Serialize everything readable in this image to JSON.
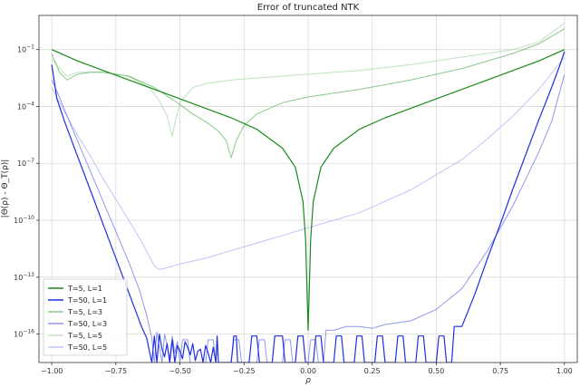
{
  "chart_data": {
    "type": "line",
    "title": "Error of truncated NTK",
    "xlabel": "ρ",
    "ylabel": "|Θ(ρ) - Θ_T(ρ)|",
    "xlim": [
      -1.05,
      1.05
    ],
    "ylim": [
      -17.5,
      0.8
    ],
    "yscale": "log",
    "grid": true,
    "legend_position": "lower-left",
    "x_ticks": [
      -1.0,
      -0.75,
      -0.5,
      -0.25,
      0.0,
      0.25,
      0.5,
      0.75,
      1.0
    ],
    "x_tick_labels": [
      "−1.00",
      "−0.75",
      "−0.50",
      "−0.25",
      "0.00",
      "0.25",
      "0.50",
      "0.75",
      "1.00"
    ],
    "y_ticks": [
      -1,
      -4,
      -7,
      -10,
      -13,
      -16
    ],
    "y_tick_labels": [
      {
        "base": "10",
        "exp": "−1"
      },
      {
        "base": "10",
        "exp": "−4"
      },
      {
        "base": "10",
        "exp": "−7"
      },
      {
        "base": "10",
        "exp": "−10"
      },
      {
        "base": "10",
        "exp": "−13"
      },
      {
        "base": "10",
        "exp": "−16"
      }
    ],
    "series": [
      {
        "name": "T=5, L=1",
        "color": "#1a8a1a",
        "opacity": 1.0,
        "width": 1.2,
        "points": [
          [
            -1.0,
            -1.0
          ],
          [
            -0.9,
            -1.6
          ],
          [
            -0.8,
            -2.1
          ],
          [
            -0.7,
            -2.6
          ],
          [
            -0.6,
            -3.1
          ],
          [
            -0.5,
            -3.6
          ],
          [
            -0.4,
            -4.1
          ],
          [
            -0.3,
            -4.6
          ],
          [
            -0.2,
            -5.2
          ],
          [
            -0.1,
            -6.2
          ],
          [
            -0.05,
            -7.2
          ],
          [
            -0.02,
            -9.0
          ],
          [
            -0.01,
            -11.0
          ],
          [
            0.0,
            -15.8
          ],
          [
            0.01,
            -11.0
          ],
          [
            0.02,
            -9.0
          ],
          [
            0.05,
            -7.2
          ],
          [
            0.1,
            -6.2
          ],
          [
            0.2,
            -5.2
          ],
          [
            0.3,
            -4.6
          ],
          [
            0.4,
            -4.1
          ],
          [
            0.5,
            -3.6
          ],
          [
            0.6,
            -3.1
          ],
          [
            0.7,
            -2.6
          ],
          [
            0.8,
            -2.1
          ],
          [
            0.9,
            -1.6
          ],
          [
            1.0,
            -1.0
          ]
        ]
      },
      {
        "name": "T=50, L=1",
        "color": "#1f2ee6",
        "opacity": 1.0,
        "width": 1.2,
        "points": [
          [
            -1.0,
            -1.8
          ],
          [
            -0.98,
            -3.6
          ],
          [
            -0.95,
            -4.8
          ],
          [
            -0.9,
            -6.6
          ],
          [
            -0.85,
            -8.4
          ],
          [
            -0.8,
            -10.2
          ],
          [
            -0.75,
            -12.0
          ],
          [
            -0.7,
            -13.8
          ],
          [
            -0.65,
            -15.6
          ],
          [
            -0.63,
            -16.2
          ],
          [
            -0.61,
            -17.5
          ],
          [
            -0.6,
            -16.1
          ],
          [
            -0.59,
            -17.5
          ],
          [
            -0.58,
            -16.0
          ],
          [
            -0.57,
            -16.8
          ],
          [
            -0.56,
            -17.2
          ],
          [
            -0.55,
            -16.5
          ],
          [
            -0.54,
            -17.5
          ],
          [
            -0.53,
            -16.3
          ],
          [
            -0.52,
            -17.5
          ],
          [
            -0.51,
            -16.6
          ],
          [
            -0.5,
            -16.9
          ],
          [
            -0.49,
            -17.3
          ],
          [
            -0.48,
            -16.4
          ],
          [
            -0.47,
            -16.7
          ],
          [
            -0.46,
            -17.1
          ],
          [
            -0.45,
            -16.5
          ],
          [
            -0.44,
            -17.4
          ],
          [
            -0.43,
            -16.9
          ],
          [
            -0.42,
            -16.8
          ],
          [
            -0.41,
            -17.5
          ],
          [
            -0.4,
            -16.6
          ],
          [
            -0.39,
            -17.0
          ],
          [
            -0.38,
            -17.5
          ],
          [
            -0.37,
            -16.7
          ],
          [
            -0.36,
            -17.5
          ],
          [
            -0.355,
            -16.1
          ],
          [
            -0.35,
            -17.5
          ],
          [
            -0.3,
            -17.5
          ],
          [
            -0.29,
            -16.1
          ],
          [
            -0.28,
            -16.1
          ],
          [
            -0.275,
            -17.5
          ],
          [
            -0.23,
            -17.5
          ],
          [
            -0.22,
            -16.1
          ],
          [
            -0.2,
            -16.1
          ],
          [
            -0.19,
            -17.5
          ],
          [
            -0.14,
            -17.5
          ],
          [
            -0.13,
            -16.1
          ],
          [
            -0.1,
            -16.1
          ],
          [
            -0.09,
            -17.5
          ],
          [
            -0.05,
            -17.5
          ],
          [
            -0.04,
            -16.1
          ],
          [
            -0.02,
            -16.1
          ],
          [
            -0.01,
            -17.5
          ],
          [
            0.02,
            -17.5
          ],
          [
            0.03,
            -16.1
          ],
          [
            0.05,
            -16.1
          ],
          [
            0.06,
            -17.5
          ],
          [
            0.1,
            -17.5
          ],
          [
            0.11,
            -16.1
          ],
          [
            0.13,
            -16.1
          ],
          [
            0.14,
            -17.5
          ],
          [
            0.18,
            -17.5
          ],
          [
            0.19,
            -16.1
          ],
          [
            0.21,
            -16.1
          ],
          [
            0.22,
            -17.5
          ],
          [
            0.26,
            -17.5
          ],
          [
            0.27,
            -16.1
          ],
          [
            0.29,
            -16.1
          ],
          [
            0.3,
            -17.5
          ],
          [
            0.34,
            -17.5
          ],
          [
            0.35,
            -16.1
          ],
          [
            0.37,
            -16.1
          ],
          [
            0.38,
            -17.5
          ],
          [
            0.42,
            -17.5
          ],
          [
            0.43,
            -16.1
          ],
          [
            0.45,
            -16.1
          ],
          [
            0.46,
            -17.5
          ],
          [
            0.5,
            -17.5
          ],
          [
            0.51,
            -16.1
          ],
          [
            0.53,
            -16.1
          ],
          [
            0.54,
            -17.5
          ],
          [
            0.56,
            -17.5
          ],
          [
            0.57,
            -15.6
          ],
          [
            0.6,
            -15.6
          ],
          [
            0.65,
            -13.9
          ],
          [
            0.7,
            -12.0
          ],
          [
            0.75,
            -10.2
          ],
          [
            0.8,
            -8.3
          ],
          [
            0.85,
            -6.5
          ],
          [
            0.9,
            -4.7
          ],
          [
            0.95,
            -3.0
          ],
          [
            0.98,
            -1.9
          ],
          [
            1.0,
            -1.1
          ]
        ]
      },
      {
        "name": "T=5, L=3",
        "color": "#4ea94e",
        "opacity": 0.65,
        "width": 1.0,
        "points": [
          [
            -1.0,
            -1.2
          ],
          [
            -0.97,
            -2.2
          ],
          [
            -0.94,
            -2.6
          ],
          [
            -0.9,
            -2.3
          ],
          [
            -0.85,
            -2.2
          ],
          [
            -0.8,
            -2.2
          ],
          [
            -0.7,
            -2.4
          ],
          [
            -0.6,
            -3.0
          ],
          [
            -0.5,
            -3.9
          ],
          [
            -0.45,
            -4.4
          ],
          [
            -0.4,
            -4.8
          ],
          [
            -0.35,
            -5.3
          ],
          [
            -0.32,
            -5.8
          ],
          [
            -0.3,
            -6.7
          ],
          [
            -0.28,
            -5.8
          ],
          [
            -0.25,
            -5.0
          ],
          [
            -0.2,
            -4.4
          ],
          [
            -0.1,
            -3.8
          ],
          [
            0.0,
            -3.5
          ],
          [
            0.2,
            -3.1
          ],
          [
            0.4,
            -2.6
          ],
          [
            0.6,
            -2.0
          ],
          [
            0.8,
            -1.2
          ],
          [
            0.9,
            -0.7
          ],
          [
            1.0,
            0.1
          ]
        ]
      },
      {
        "name": "T=50, L=3",
        "color": "#7b86e8",
        "opacity": 0.85,
        "width": 1.0,
        "points": [
          [
            -1.0,
            -2.6
          ],
          [
            -0.98,
            -3.2
          ],
          [
            -0.95,
            -4.2
          ],
          [
            -0.9,
            -5.8
          ],
          [
            -0.85,
            -7.4
          ],
          [
            -0.8,
            -9.0
          ],
          [
            -0.75,
            -10.6
          ],
          [
            -0.7,
            -12.2
          ],
          [
            -0.66,
            -13.6
          ],
          [
            -0.63,
            -15.0
          ],
          [
            -0.61,
            -16.2
          ],
          [
            -0.6,
            -17.5
          ],
          [
            -0.59,
            -15.9
          ],
          [
            -0.57,
            -17.5
          ],
          [
            -0.56,
            -16.0
          ],
          [
            -0.55,
            -16.6
          ],
          [
            -0.54,
            -17.3
          ],
          [
            -0.53,
            -16.1
          ],
          [
            -0.52,
            -17.0
          ],
          [
            -0.51,
            -16.4
          ],
          [
            -0.5,
            -17.5
          ],
          [
            -0.49,
            -16.3
          ],
          [
            -0.47,
            -16.3
          ],
          [
            -0.46,
            -17.5
          ],
          [
            -0.4,
            -17.5
          ],
          [
            -0.39,
            -16.3
          ],
          [
            -0.37,
            -16.3
          ],
          [
            -0.36,
            -17.5
          ],
          [
            -0.3,
            -17.5
          ],
          [
            -0.29,
            -16.3
          ],
          [
            -0.27,
            -16.3
          ],
          [
            -0.26,
            -17.5
          ],
          [
            -0.2,
            -17.5
          ],
          [
            -0.19,
            -16.3
          ],
          [
            -0.17,
            -16.3
          ],
          [
            -0.16,
            -17.5
          ],
          [
            -0.1,
            -17.5
          ],
          [
            -0.09,
            -16.3
          ],
          [
            -0.07,
            -16.3
          ],
          [
            -0.06,
            -17.5
          ],
          [
            0.0,
            -17.5
          ],
          [
            0.01,
            -16.3
          ],
          [
            0.03,
            -16.3
          ],
          [
            0.04,
            -17.5
          ],
          [
            0.06,
            -17.5
          ],
          [
            0.07,
            -15.8
          ],
          [
            0.1,
            -15.8
          ],
          [
            0.15,
            -15.6
          ],
          [
            0.2,
            -15.6
          ],
          [
            0.25,
            -15.7
          ],
          [
            0.3,
            -15.5
          ],
          [
            0.35,
            -15.4
          ],
          [
            0.4,
            -15.3
          ],
          [
            0.45,
            -15.0
          ],
          [
            0.5,
            -14.7
          ],
          [
            0.6,
            -13.6
          ],
          [
            0.7,
            -11.6
          ],
          [
            0.8,
            -9.2
          ],
          [
            0.9,
            -6.4
          ],
          [
            0.95,
            -4.8
          ],
          [
            1.0,
            -2.3
          ]
        ]
      },
      {
        "name": "T=5, L=5",
        "color": "#9cd39c",
        "opacity": 0.65,
        "width": 1.0,
        "points": [
          [
            -1.0,
            -1.5
          ],
          [
            -0.97,
            -2.0
          ],
          [
            -0.94,
            -2.4
          ],
          [
            -0.9,
            -2.2
          ],
          [
            -0.8,
            -2.2
          ],
          [
            -0.7,
            -2.4
          ],
          [
            -0.62,
            -3.0
          ],
          [
            -0.58,
            -3.7
          ],
          [
            -0.55,
            -4.5
          ],
          [
            -0.53,
            -5.6
          ],
          [
            -0.52,
            -4.9
          ],
          [
            -0.5,
            -3.8
          ],
          [
            -0.45,
            -3.0
          ],
          [
            -0.4,
            -2.8
          ],
          [
            -0.3,
            -2.6
          ],
          [
            -0.2,
            -2.5
          ],
          [
            0.0,
            -2.3
          ],
          [
            0.2,
            -2.1
          ],
          [
            0.4,
            -1.8
          ],
          [
            0.6,
            -1.4
          ],
          [
            0.8,
            -1.0
          ],
          [
            0.9,
            -0.6
          ],
          [
            1.0,
            0.4
          ]
        ]
      },
      {
        "name": "T=50, L=5",
        "color": "#b7bff5",
        "opacity": 0.9,
        "width": 1.0,
        "points": [
          [
            -1.0,
            -3.0
          ],
          [
            -0.95,
            -4.3
          ],
          [
            -0.9,
            -5.5
          ],
          [
            -0.85,
            -6.6
          ],
          [
            -0.8,
            -7.8
          ],
          [
            -0.75,
            -8.9
          ],
          [
            -0.7,
            -10.0
          ],
          [
            -0.65,
            -11.1
          ],
          [
            -0.62,
            -11.9
          ],
          [
            -0.6,
            -12.4
          ],
          [
            -0.58,
            -12.6
          ],
          [
            -0.55,
            -12.5
          ],
          [
            -0.5,
            -12.3
          ],
          [
            -0.4,
            -12.0
          ],
          [
            -0.3,
            -11.6
          ],
          [
            -0.2,
            -11.2
          ],
          [
            -0.1,
            -10.8
          ],
          [
            0.0,
            -10.4
          ],
          [
            0.1,
            -10.0
          ],
          [
            0.2,
            -9.6
          ],
          [
            0.3,
            -9.0
          ],
          [
            0.4,
            -8.4
          ],
          [
            0.5,
            -7.6
          ],
          [
            0.6,
            -6.8
          ],
          [
            0.7,
            -5.7
          ],
          [
            0.8,
            -4.5
          ],
          [
            0.9,
            -3.1
          ],
          [
            1.0,
            -1.4
          ]
        ]
      }
    ]
  }
}
